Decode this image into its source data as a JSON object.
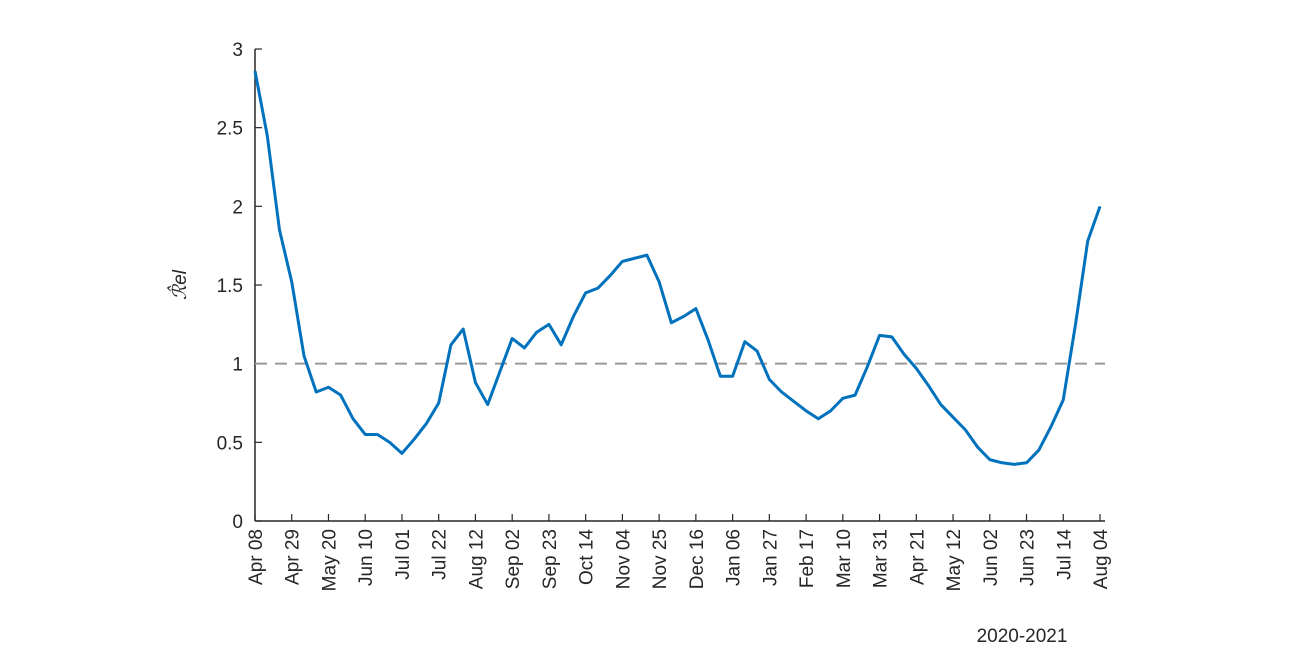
{
  "chart_data": {
    "type": "line",
    "ylabel": "ℛ̂el",
    "annotation": "2020-2021",
    "categories": [
      "Apr 08",
      null,
      null,
      "Apr 29",
      null,
      null,
      "May 20",
      null,
      null,
      "Jun 10",
      null,
      null,
      "Jul 01",
      null,
      null,
      "Jul 22",
      null,
      null,
      "Aug 12",
      null,
      null,
      "Sep 02",
      null,
      null,
      "Sep 23",
      null,
      null,
      "Oct 14",
      null,
      null,
      "Nov 04",
      null,
      null,
      "Nov 25",
      null,
      null,
      "Dec 16",
      null,
      null,
      "Jan 06",
      null,
      null,
      "Jan 27",
      null,
      null,
      "Feb 17",
      null,
      null,
      "Mar 10",
      null,
      null,
      "Mar 31",
      null,
      null,
      "Apr 21",
      null,
      null,
      "May 12",
      null,
      null,
      "Jun 02",
      null,
      null,
      "Jun 23",
      null,
      null,
      "Jul 14",
      null,
      null,
      "Aug 04"
    ],
    "series": [
      {
        "color": "#0072bd",
        "values": [
          2.86,
          2.45,
          1.85,
          1.52,
          1.05,
          0.82,
          0.85,
          0.8,
          0.65,
          0.55,
          0.55,
          0.5,
          0.43,
          0.52,
          0.62,
          0.75,
          1.12,
          1.22,
          0.88,
          0.74,
          0.95,
          1.16,
          1.1,
          1.2,
          1.25,
          1.12,
          1.3,
          1.45,
          1.48,
          1.56,
          1.65,
          1.67,
          1.69,
          1.52,
          1.26,
          1.3,
          1.35,
          1.15,
          0.92,
          0.92,
          1.14,
          1.08,
          0.9,
          0.82,
          0.76,
          0.7,
          0.65,
          0.7,
          0.78,
          0.8,
          0.98,
          1.18,
          1.17,
          1.06,
          0.97,
          0.86,
          0.74,
          0.66,
          0.58,
          0.47,
          0.39,
          0.37,
          0.36,
          0.37,
          0.45,
          0.6,
          0.77,
          1.25,
          1.78,
          2.0
        ]
      }
    ],
    "reference_line": {
      "value": 1,
      "color": "#999999"
    },
    "ylim": [
      0,
      3
    ],
    "yticks": [
      0,
      0.5,
      1,
      1.5,
      2,
      2.5,
      3
    ],
    "grid": false
  }
}
